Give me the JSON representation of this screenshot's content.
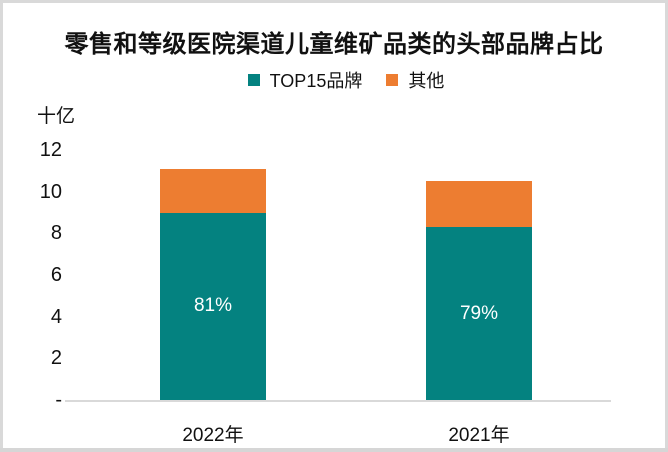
{
  "chart_data": {
    "type": "bar",
    "stacked": true,
    "title": "零售和等级医院渠道儿童维矿品类的头部品牌占比",
    "unit_label": "十亿",
    "xlabel": "",
    "ylabel": "十亿",
    "categories": [
      "2022年",
      "2021年"
    ],
    "series": [
      {
        "name": "TOP15品牌",
        "color": "#048280",
        "values": [
          9.0,
          8.3
        ],
        "data_labels": [
          "81%",
          "79%"
        ]
      },
      {
        "name": "其他",
        "color": "#ED7D31",
        "values": [
          2.1,
          2.2
        ],
        "data_labels": [
          "",
          ""
        ]
      }
    ],
    "totals": [
      11.1,
      10.5
    ],
    "ylim": [
      0,
      12
    ],
    "yticks": [
      {
        "label": "12",
        "value": 12
      },
      {
        "label": "10",
        "value": 10
      },
      {
        "label": "8",
        "value": 8
      },
      {
        "label": "6",
        "value": 6
      },
      {
        "label": "4",
        "value": 4
      },
      {
        "label": "2",
        "value": 2
      },
      {
        "label": "-",
        "value": 0
      }
    ],
    "grid": false,
    "legend_position": "top",
    "colors": {
      "axis_line": "#D9D9D9",
      "text": "#111111",
      "background": "#FFFFFF",
      "bar_label_text": "#FFFFFF"
    }
  }
}
